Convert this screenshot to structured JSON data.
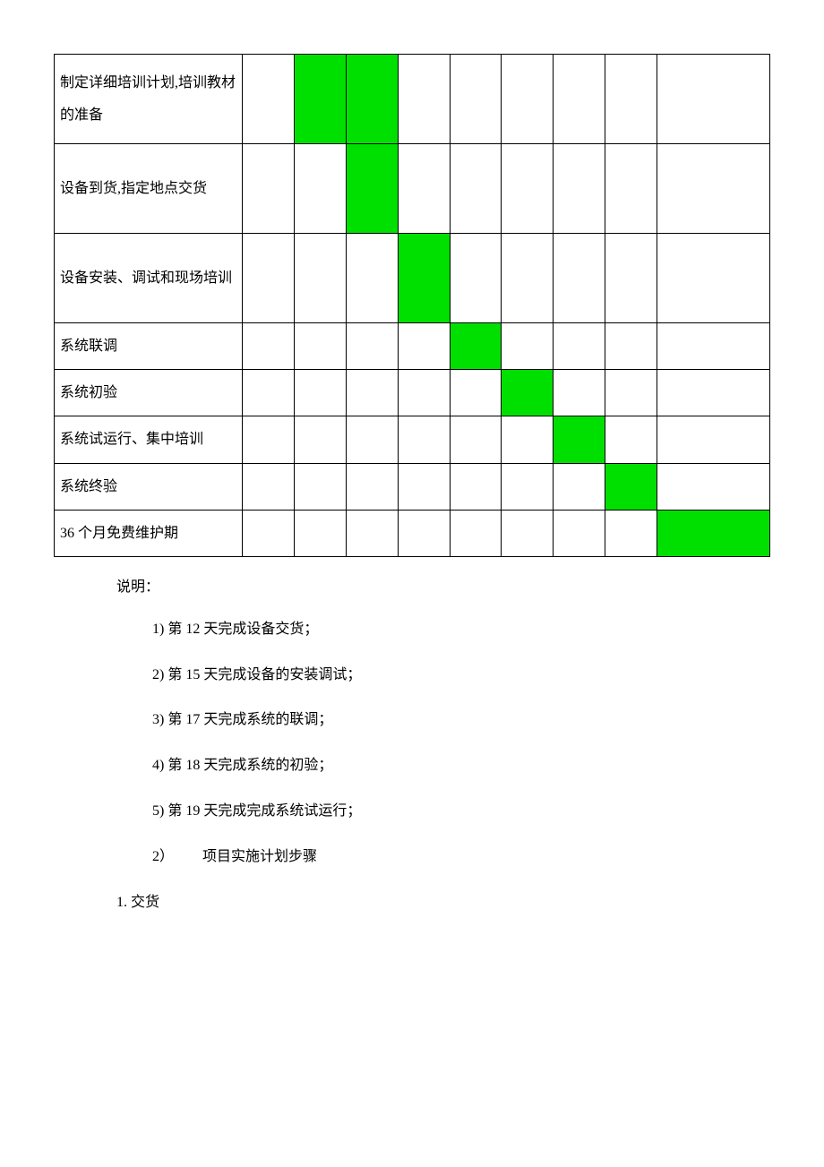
{
  "gantt": {
    "fill_color": "#00e000",
    "border_color": "#000000",
    "rows": [
      {
        "label": "制定详细培训计划,培训教材的准备",
        "cells": [
          false,
          true,
          true,
          false,
          false,
          false,
          false,
          false,
          false
        ],
        "tall": true
      },
      {
        "label": "设备到货,指定地点交货",
        "cells": [
          false,
          false,
          true,
          false,
          false,
          false,
          false,
          false,
          false
        ],
        "tall": true
      },
      {
        "label": "设备安装、调试和现场培训",
        "cells": [
          false,
          false,
          false,
          true,
          false,
          false,
          false,
          false,
          false
        ],
        "tall": true
      },
      {
        "label": "系统联调",
        "cells": [
          false,
          false,
          false,
          false,
          true,
          false,
          false,
          false,
          false
        ],
        "tall": false
      },
      {
        "label": "系统初验",
        "cells": [
          false,
          false,
          false,
          false,
          false,
          true,
          false,
          false,
          false
        ],
        "tall": false
      },
      {
        "label": "系统试运行、集中培训",
        "cells": [
          false,
          false,
          false,
          false,
          false,
          false,
          true,
          false,
          false
        ],
        "tall": false
      },
      {
        "label": "系统终验",
        "cells": [
          false,
          false,
          false,
          false,
          false,
          false,
          false,
          true,
          false
        ],
        "tall": false
      },
      {
        "label": "36 个月免费维护期",
        "cells": [
          false,
          false,
          false,
          false,
          false,
          false,
          false,
          false,
          true
        ],
        "tall": false
      }
    ]
  },
  "notes": {
    "title": "说明：",
    "items": [
      "1)  第 12 天完成设备交货；",
      "2)  第 15 天完成设备的安装调试；",
      "3)  第 17 天完成系统的联调；",
      "4)  第 18 天完成系统的初验；",
      "5)  第 19 天完成完成系统试运行；"
    ],
    "section": "2）  项目实施计划步骤",
    "sub": "1.  交货"
  }
}
